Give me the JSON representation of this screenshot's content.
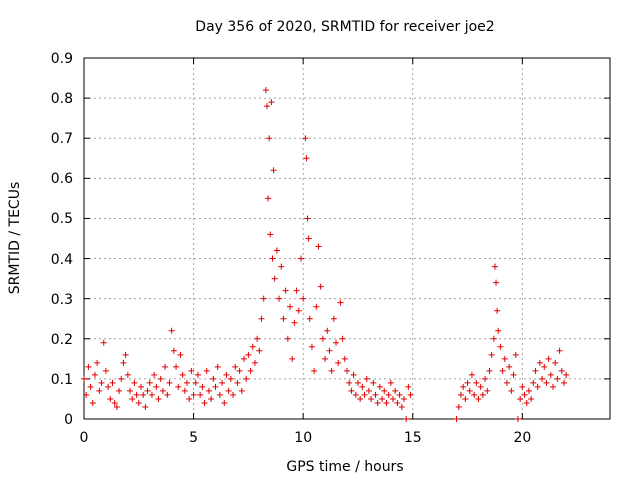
{
  "chart_data": {
    "type": "scatter",
    "title": "Day 356 of 2020, SRMTID for receiver joe2",
    "xlabel": "GPS time / hours",
    "ylabel": "SRMTID / TECUs",
    "xlim": [
      0,
      24
    ],
    "ylim": [
      0,
      0.9
    ],
    "xticks": [
      0,
      5,
      10,
      15,
      20
    ],
    "xtick_labels": [
      "0",
      "5",
      "10",
      "15",
      "20"
    ],
    "yticks": [
      0,
      0.1,
      0.2,
      0.3,
      0.4,
      0.5,
      0.6,
      0.7,
      0.8,
      0.9
    ],
    "ytick_labels": [
      "0",
      "0.1",
      "0.2",
      "0.3",
      "0.4",
      "0.5",
      "0.6",
      "0.7",
      "0.8",
      "0.9"
    ],
    "grid": true,
    "marker": "+",
    "color": "#e00000",
    "series": [
      {
        "name": "SRMTID",
        "points": [
          [
            0.0,
            0.1
          ],
          [
            0.1,
            0.06
          ],
          [
            0.2,
            0.13
          ],
          [
            0.3,
            0.08
          ],
          [
            0.4,
            0.04
          ],
          [
            0.5,
            0.11
          ],
          [
            0.6,
            0.14
          ],
          [
            0.7,
            0.07
          ],
          [
            0.8,
            0.09
          ],
          [
            0.9,
            0.19
          ],
          [
            1.0,
            0.12
          ],
          [
            1.1,
            0.08
          ],
          [
            1.2,
            0.05
          ],
          [
            1.3,
            0.09
          ],
          [
            1.4,
            0.04
          ],
          [
            1.5,
            0.03
          ],
          [
            1.6,
            0.07
          ],
          [
            1.7,
            0.1
          ],
          [
            1.8,
            0.14
          ],
          [
            1.9,
            0.16
          ],
          [
            2.0,
            0.11
          ],
          [
            2.1,
            0.07
          ],
          [
            2.2,
            0.05
          ],
          [
            2.3,
            0.09
          ],
          [
            2.4,
            0.06
          ],
          [
            2.5,
            0.04
          ],
          [
            2.6,
            0.08
          ],
          [
            2.7,
            0.06
          ],
          [
            2.8,
            0.03
          ],
          [
            2.9,
            0.07
          ],
          [
            3.0,
            0.09
          ],
          [
            3.1,
            0.06
          ],
          [
            3.2,
            0.11
          ],
          [
            3.3,
            0.08
          ],
          [
            3.4,
            0.05
          ],
          [
            3.5,
            0.1
          ],
          [
            3.6,
            0.07
          ],
          [
            3.7,
            0.13
          ],
          [
            3.8,
            0.06
          ],
          [
            3.9,
            0.09
          ],
          [
            4.0,
            0.22
          ],
          [
            4.1,
            0.17
          ],
          [
            4.2,
            0.13
          ],
          [
            4.3,
            0.08
          ],
          [
            4.4,
            0.16
          ],
          [
            4.5,
            0.11
          ],
          [
            4.6,
            0.07
          ],
          [
            4.7,
            0.09
          ],
          [
            4.8,
            0.05
          ],
          [
            4.9,
            0.12
          ],
          [
            5.0,
            0.06
          ],
          [
            5.1,
            0.09
          ],
          [
            5.2,
            0.11
          ],
          [
            5.3,
            0.06
          ],
          [
            5.4,
            0.08
          ],
          [
            5.5,
            0.04
          ],
          [
            5.6,
            0.12
          ],
          [
            5.7,
            0.07
          ],
          [
            5.8,
            0.05
          ],
          [
            5.9,
            0.1
          ],
          [
            6.0,
            0.08
          ],
          [
            6.1,
            0.13
          ],
          [
            6.2,
            0.06
          ],
          [
            6.3,
            0.09
          ],
          [
            6.4,
            0.04
          ],
          [
            6.5,
            0.11
          ],
          [
            6.6,
            0.07
          ],
          [
            6.7,
            0.1
          ],
          [
            6.8,
            0.06
          ],
          [
            6.9,
            0.13
          ],
          [
            7.0,
            0.09
          ],
          [
            7.1,
            0.12
          ],
          [
            7.2,
            0.07
          ],
          [
            7.3,
            0.15
          ],
          [
            7.4,
            0.1
          ],
          [
            7.5,
            0.16
          ],
          [
            7.6,
            0.12
          ],
          [
            7.7,
            0.18
          ],
          [
            7.8,
            0.14
          ],
          [
            7.9,
            0.2
          ],
          [
            8.0,
            0.17
          ],
          [
            8.1,
            0.25
          ],
          [
            8.2,
            0.3
          ],
          [
            8.3,
            0.82
          ],
          [
            8.35,
            0.78
          ],
          [
            8.4,
            0.55
          ],
          [
            8.45,
            0.7
          ],
          [
            8.5,
            0.46
          ],
          [
            8.55,
            0.79
          ],
          [
            8.6,
            0.4
          ],
          [
            8.65,
            0.62
          ],
          [
            8.7,
            0.35
          ],
          [
            8.8,
            0.42
          ],
          [
            8.9,
            0.3
          ],
          [
            9.0,
            0.38
          ],
          [
            9.1,
            0.25
          ],
          [
            9.2,
            0.32
          ],
          [
            9.3,
            0.2
          ],
          [
            9.4,
            0.28
          ],
          [
            9.5,
            0.15
          ],
          [
            9.6,
            0.24
          ],
          [
            9.7,
            0.32
          ],
          [
            9.8,
            0.27
          ],
          [
            9.9,
            0.4
          ],
          [
            10.0,
            0.3
          ],
          [
            10.1,
            0.7
          ],
          [
            10.15,
            0.65
          ],
          [
            10.2,
            0.5
          ],
          [
            10.25,
            0.45
          ],
          [
            10.3,
            0.25
          ],
          [
            10.4,
            0.18
          ],
          [
            10.5,
            0.12
          ],
          [
            10.6,
            0.28
          ],
          [
            10.7,
            0.43
          ],
          [
            10.8,
            0.33
          ],
          [
            10.9,
            0.2
          ],
          [
            11.0,
            0.15
          ],
          [
            11.1,
            0.22
          ],
          [
            11.2,
            0.17
          ],
          [
            11.3,
            0.12
          ],
          [
            11.4,
            0.25
          ],
          [
            11.5,
            0.19
          ],
          [
            11.6,
            0.14
          ],
          [
            11.7,
            0.29
          ],
          [
            11.8,
            0.2
          ],
          [
            11.9,
            0.15
          ],
          [
            12.0,
            0.12
          ],
          [
            12.1,
            0.09
          ],
          [
            12.2,
            0.07
          ],
          [
            12.3,
            0.11
          ],
          [
            12.4,
            0.06
          ],
          [
            12.5,
            0.09
          ],
          [
            12.6,
            0.05
          ],
          [
            12.7,
            0.08
          ],
          [
            12.8,
            0.06
          ],
          [
            12.9,
            0.1
          ],
          [
            13.0,
            0.07
          ],
          [
            13.1,
            0.05
          ],
          [
            13.2,
            0.09
          ],
          [
            13.3,
            0.06
          ],
          [
            13.4,
            0.04
          ],
          [
            13.5,
            0.08
          ],
          [
            13.6,
            0.05
          ],
          [
            13.7,
            0.07
          ],
          [
            13.8,
            0.04
          ],
          [
            13.9,
            0.06
          ],
          [
            14.0,
            0.09
          ],
          [
            14.1,
            0.05
          ],
          [
            14.2,
            0.07
          ],
          [
            14.3,
            0.04
          ],
          [
            14.4,
            0.06
          ],
          [
            14.5,
            0.03
          ],
          [
            14.6,
            0.05
          ],
          [
            14.7,
            0.0
          ],
          [
            14.8,
            0.08
          ],
          [
            14.9,
            0.06
          ],
          [
            17.0,
            0.0
          ],
          [
            17.1,
            0.03
          ],
          [
            17.2,
            0.06
          ],
          [
            17.3,
            0.08
          ],
          [
            17.4,
            0.05
          ],
          [
            17.5,
            0.09
          ],
          [
            17.6,
            0.07
          ],
          [
            17.7,
            0.11
          ],
          [
            17.8,
            0.06
          ],
          [
            17.9,
            0.09
          ],
          [
            18.0,
            0.05
          ],
          [
            18.1,
            0.08
          ],
          [
            18.2,
            0.06
          ],
          [
            18.3,
            0.1
          ],
          [
            18.4,
            0.07
          ],
          [
            18.5,
            0.12
          ],
          [
            18.6,
            0.16
          ],
          [
            18.7,
            0.2
          ],
          [
            18.75,
            0.38
          ],
          [
            18.8,
            0.34
          ],
          [
            18.85,
            0.27
          ],
          [
            18.9,
            0.22
          ],
          [
            19.0,
            0.18
          ],
          [
            19.1,
            0.12
          ],
          [
            19.2,
            0.15
          ],
          [
            19.3,
            0.09
          ],
          [
            19.4,
            0.13
          ],
          [
            19.5,
            0.07
          ],
          [
            19.6,
            0.11
          ],
          [
            19.7,
            0.16
          ],
          [
            19.8,
            0.0
          ],
          [
            19.9,
            0.05
          ],
          [
            20.0,
            0.08
          ],
          [
            20.1,
            0.06
          ],
          [
            20.2,
            0.04
          ],
          [
            20.3,
            0.07
          ],
          [
            20.4,
            0.05
          ],
          [
            20.5,
            0.09
          ],
          [
            20.6,
            0.12
          ],
          [
            20.7,
            0.08
          ],
          [
            20.8,
            0.14
          ],
          [
            20.9,
            0.1
          ],
          [
            21.0,
            0.13
          ],
          [
            21.1,
            0.09
          ],
          [
            21.2,
            0.15
          ],
          [
            21.3,
            0.11
          ],
          [
            21.4,
            0.08
          ],
          [
            21.5,
            0.14
          ],
          [
            21.6,
            0.1
          ],
          [
            21.7,
            0.17
          ],
          [
            21.8,
            0.12
          ],
          [
            21.9,
            0.09
          ],
          [
            22.0,
            0.11
          ]
        ]
      }
    ]
  }
}
